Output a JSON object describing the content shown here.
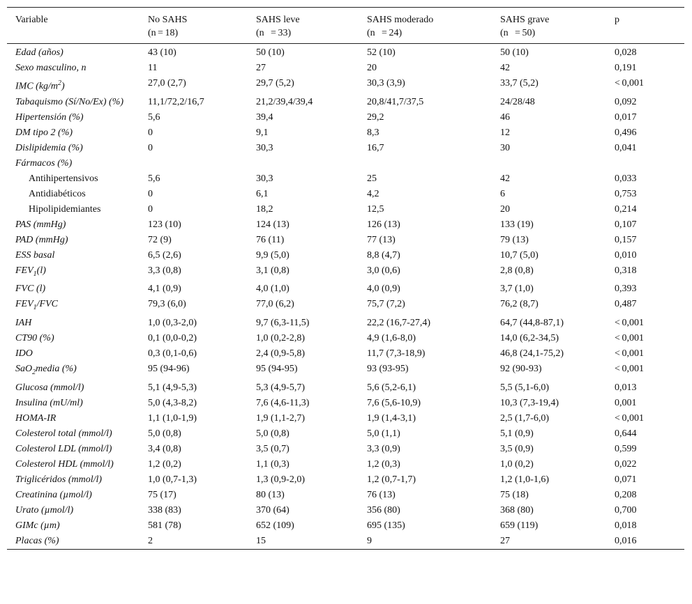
{
  "table": {
    "headers": [
      {
        "label": "Variable",
        "n": ""
      },
      {
        "label": "No SAHS",
        "n": "(n\t=\t18)"
      },
      {
        "label": "SAHS leve",
        "n": "(n\t=\t33)"
      },
      {
        "label": "SAHS moderado",
        "n": "(n\t=\t24)"
      },
      {
        "label": "SAHS grave",
        "n": "(n\t=\t50)"
      },
      {
        "label": "p",
        "n": ""
      }
    ],
    "rows": [
      {
        "label": "Edad (años)",
        "cells": [
          "43 (10)",
          "50 (10)",
          "52 (10)",
          "50 (10)",
          "0,028"
        ]
      },
      {
        "label": "Sexo masculino, n",
        "cells": [
          "11",
          "27",
          "20",
          "42",
          "0,191"
        ]
      },
      {
        "label": "IMC (kg/m",
        "sup": "2",
        "tail": ")",
        "cells": [
          "27,0 (2,7)",
          "29,7 (5,2)",
          "30,3 (3,9)",
          "33,7 (5,2)",
          "<\t0,001"
        ]
      },
      {
        "label": "Tabaquismo (Sí/No/Ex) (%)",
        "cells": [
          "11,1/72,2/16,7",
          "21,2/39,4/39,4",
          "20,8/41,7/37,5",
          "24/28/48",
          "0,092"
        ]
      },
      {
        "label": "Hipertensión (%)",
        "cells": [
          "5,6",
          "39,4",
          "29,2",
          "46",
          "0,017"
        ]
      },
      {
        "label": "DM tipo 2 (%)",
        "cells": [
          "0",
          "9,1",
          "8,3",
          "12",
          "0,496"
        ]
      },
      {
        "label": "Dislipidemia (%)",
        "cells": [
          "0",
          "30,3",
          "16,7",
          "30",
          "0,041"
        ]
      },
      {
        "label": "Fármacos (%)",
        "cells": [
          "",
          "",
          "",
          "",
          ""
        ]
      },
      {
        "label": "Antihipertensivos",
        "sub": true,
        "cells": [
          "5,6",
          "30,3",
          "25",
          "42",
          "0,033"
        ]
      },
      {
        "label": "Antidiabéticos",
        "sub": true,
        "cells": [
          "0",
          "6,1",
          "4,2",
          "6",
          "0,753"
        ]
      },
      {
        "label": "Hipolipidemiantes",
        "sub": true,
        "cells": [
          "0",
          "18,2",
          "12,5",
          "20",
          "0,214"
        ]
      },
      {
        "label": "PAS (mmHg)",
        "cells": [
          "123 (10)",
          "124 (13)",
          "126 (13)",
          "133 (19)",
          "0,107"
        ]
      },
      {
        "label": "PAD (mmHg)",
        "cells": [
          "72 (9)",
          "76 (11)",
          "77 (13)",
          "79 (13)",
          "0,157"
        ]
      },
      {
        "label": "ESS basal",
        "cells": [
          "6,5 (2,6)",
          "9,9 (5,0)",
          "8,8 (4,7)",
          "10,7 (5,0)",
          "0,010"
        ]
      },
      {
        "label": "FEV",
        "subscript": "1",
        "tail": "(l)",
        "cells": [
          "3,3 (0,8)",
          "3,1 (0,8)",
          "3,0 (0,6)",
          "2,8 (0,8)",
          "0,318"
        ]
      },
      {
        "label": "FVC (l)",
        "cells": [
          "4,1 (0,9)",
          "4,0 (1,0)",
          "4,0 (0,9)",
          "3,7 (1,0)",
          "0,393"
        ]
      },
      {
        "label": "FEV",
        "subscript": "1",
        "tail": "/FVC",
        "cells": [
          "79,3 (6,0)",
          "77,0 (6,2)",
          "75,7 (7,2)",
          "76,2 (8,7)",
          "0,487"
        ]
      },
      {
        "label": "IAH",
        "cells": [
          "1,0 (0,3-2,0)",
          "9,7 (6,3-11,5)",
          "22,2 (16,7-27,4)",
          "64,7 (44,8-87,1)",
          "<\t0,001"
        ]
      },
      {
        "label": "CT90 (%)",
        "cells": [
          "0,1 (0,0-0,2)",
          "1,0 (0,2-2,8)",
          "4,9 (1,6-8,0)",
          "14,0 (6,2-34,5)",
          "<\t0,001"
        ]
      },
      {
        "label": "IDO",
        "cells": [
          "0,3 (0,1-0,6)",
          "2,4 (0,9-5,8)",
          "11,7 (7,3-18,9)",
          "46,8 (24,1-75,2)",
          "<\t0,001"
        ]
      },
      {
        "label": "SaO",
        "subscript": "2",
        "tail": "media (%)",
        "cells": [
          "95 (94-96)",
          "95 (94-95)",
          "93 (93-95)",
          "92 (90-93)",
          "<\t0,001"
        ]
      },
      {
        "label": "Glucosa (mmol/l)",
        "cells": [
          "5,1 (4,9-5,3)",
          "5,3 (4,9-5,7)",
          "5,6 (5,2-6,1)",
          "5,5 (5,1-6,0)",
          "0,013"
        ]
      },
      {
        "label": "Insulina (mU/ml)",
        "cells": [
          "5,0 (4,3-8,2)",
          "7,6 (4,6-11,3)",
          "7,6 (5,6-10,9)",
          "10,3 (7,3-19,4)",
          "0,001"
        ]
      },
      {
        "label": "HOMA-IR",
        "cells": [
          "1,1 (1,0-1,9)",
          "1,9 (1,1-2,7)",
          "1,9 (1,4-3,1)",
          "2,5 (1,7-6,0)",
          "<\t0,001"
        ]
      },
      {
        "label": "Colesterol total (mmol/l)",
        "cells": [
          "5,0 (0,8)",
          "5,0 (0,8)",
          "5,0 (1,1)",
          "5,1 (0,9)",
          "0,644"
        ]
      },
      {
        "label": "Colesterol LDL (mmol/l)",
        "cells": [
          "3,4 (0,8)",
          "3,5 (0,7)",
          "3,3 (0,9)",
          "3,5 (0,9)",
          "0,599"
        ]
      },
      {
        "label": "Colesterol HDL (mmol/l)",
        "cells": [
          "1,2 (0,2)",
          "1,1 (0,3)",
          "1,2 (0,3)",
          "1,0 (0,2)",
          "0,022"
        ]
      },
      {
        "label": "Triglicéridos (mmol/l)",
        "cells": [
          "1,0 (0,7-1,3)",
          "1,3 (0,9-2,0)",
          "1,2 (0,7-1,7)",
          "1,2 (1,0-1,6)",
          "0,071"
        ]
      },
      {
        "label": "Creatinina (µmol/l)",
        "cells": [
          "75 (17)",
          "80 (13)",
          "76 (13)",
          "75 (18)",
          "0,208"
        ]
      },
      {
        "label": "Urato (µmol/l)",
        "cells": [
          "338 (83)",
          "370 (64)",
          "356 (80)",
          "368 (80)",
          "0,700"
        ]
      },
      {
        "label": "GIMc (µm)",
        "cells": [
          "581 (78)",
          "652 (109)",
          "695 (135)",
          "659 (119)",
          "0,018"
        ]
      },
      {
        "label": "Placas (%)",
        "cells": [
          "2",
          "15",
          "9",
          "27",
          "0,016"
        ]
      }
    ]
  }
}
